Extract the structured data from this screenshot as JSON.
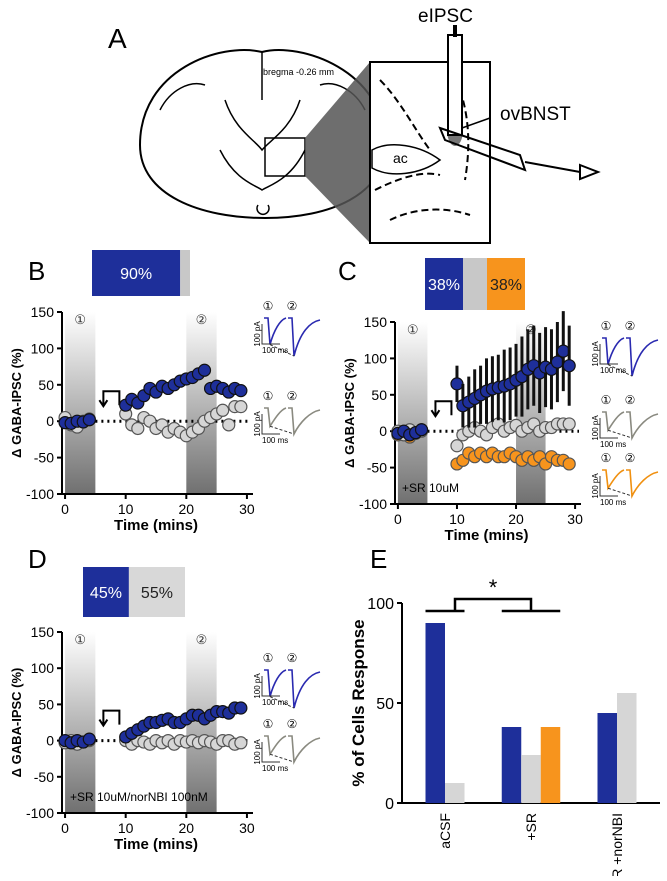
{
  "diagram": {
    "panel": "A",
    "labels": [
      "eIPSC",
      "bregma -0.26 mm",
      "ovBNST",
      "ac"
    ]
  },
  "chart_data": [
    {
      "type": "scatter",
      "panel": "B",
      "xlabel": "Time (mins)",
      "ylabel": "Δ GABA-IPSC (%)",
      "x": [
        0,
        1,
        2,
        3,
        4,
        10,
        11,
        12,
        13,
        14,
        15,
        16,
        17,
        18,
        19,
        20,
        21,
        22,
        23,
        24,
        25,
        26,
        27,
        28,
        29
      ],
      "series": [
        {
          "color": "#1e2f9a",
          "values": [
            -2,
            -3,
            0,
            -1,
            2,
            22,
            30,
            25,
            35,
            45,
            40,
            48,
            45,
            50,
            55,
            58,
            60,
            65,
            70,
            45,
            48,
            45,
            40,
            45,
            42
          ]
        },
        {
          "color": "#d6d6d6",
          "values": [
            5,
            -5,
            -8,
            0,
            3,
            10,
            -5,
            -10,
            5,
            0,
            -10,
            -5,
            -15,
            -10,
            -15,
            -20,
            -15,
            -10,
            0,
            5,
            10,
            15,
            -5,
            20,
            20
          ]
        }
      ],
      "xlim": [
        -1,
        31
      ],
      "ylim": [
        -100,
        150
      ],
      "xticks": [
        0,
        10,
        20,
        30
      ],
      "yticks": [
        -100,
        -50,
        0,
        50,
        100,
        150
      ],
      "reference_line": 0,
      "shaded": [
        [
          0,
          5
        ],
        [
          20,
          25
        ]
      ],
      "window_labels": [
        "①",
        "②"
      ],
      "summary": {
        "values": [
          90,
          10
        ],
        "value_labels": [
          "90%",
          null
        ],
        "colors": [
          "#1e2f9a",
          "#c8c8c8"
        ]
      },
      "insets": {
        "colors": [
          "#2a2ab0",
          "#8a8a80"
        ],
        "scale_y": "100 pA",
        "scale_x": "100 ms"
      }
    },
    {
      "type": "scatter",
      "panel": "C",
      "xlabel": "Time (mins)",
      "ylabel": "Δ GABA-IPSC (%)",
      "annotation": "+SR 10uM",
      "x": [
        0,
        1,
        2,
        3,
        4,
        10,
        11,
        12,
        13,
        14,
        15,
        16,
        17,
        18,
        19,
        20,
        21,
        22,
        23,
        24,
        25,
        26,
        27,
        28,
        29
      ],
      "series": [
        {
          "color": "#1e2f9a",
          "values": [
            -3,
            0,
            -5,
            -2,
            2,
            65,
            35,
            40,
            45,
            50,
            55,
            58,
            60,
            62,
            65,
            70,
            75,
            85,
            90,
            80,
            88,
            85,
            95,
            110,
            90
          ],
          "errors": [
            8,
            8,
            8,
            8,
            8,
            25,
            30,
            35,
            40,
            40,
            45,
            45,
            45,
            50,
            50,
            50,
            55,
            55,
            55,
            55,
            55,
            55,
            55,
            55,
            55
          ]
        },
        {
          "color": "#d6d6d6",
          "values": [
            0,
            -5,
            2,
            -3,
            0,
            -20,
            -5,
            0,
            5,
            0,
            -5,
            5,
            10,
            0,
            5,
            8,
            0,
            5,
            10,
            0,
            5,
            5,
            10,
            10,
            10
          ]
        },
        {
          "color": "#f7941d",
          "values": [
            -5,
            0,
            -8,
            -3,
            2,
            -45,
            -40,
            -30,
            -35,
            -30,
            -35,
            -30,
            -35,
            -35,
            -30,
            -35,
            -40,
            -35,
            -40,
            -35,
            -45,
            -35,
            -40,
            -40,
            -45
          ]
        }
      ],
      "xlim": [
        -1,
        31
      ],
      "ylim": [
        -100,
        150
      ],
      "xticks": [
        0,
        10,
        20,
        30
      ],
      "yticks": [
        -100,
        -50,
        0,
        50,
        100,
        150
      ],
      "reference_line": 0,
      "shaded": [
        [
          0,
          5
        ],
        [
          20,
          25
        ]
      ],
      "window_labels": [
        "①",
        "②"
      ],
      "summary": {
        "values": [
          38,
          24,
          38
        ],
        "value_labels": [
          "38%",
          null,
          "38%"
        ],
        "colors": [
          "#1e2f9a",
          "#c8c8c8",
          "#f7941d"
        ]
      },
      "insets": {
        "colors": [
          "#2a2ab0",
          "#8a8a80",
          "#f09010"
        ],
        "scale_y": "100 pA",
        "scale_x": "100 ms"
      }
    },
    {
      "type": "scatter",
      "panel": "D",
      "xlabel": "Time (mins)",
      "ylabel": "Δ GABA-IPSC (%)",
      "annotation": "+SR 10uM/norNBI 100nM",
      "x": [
        0,
        1,
        2,
        3,
        4,
        10,
        11,
        12,
        13,
        14,
        15,
        16,
        17,
        18,
        19,
        20,
        21,
        22,
        23,
        24,
        25,
        26,
        27,
        28,
        29
      ],
      "series": [
        {
          "color": "#1e2f9a",
          "values": [
            0,
            -3,
            0,
            -2,
            2,
            5,
            10,
            15,
            20,
            25,
            25,
            28,
            30,
            25,
            25,
            30,
            35,
            35,
            30,
            35,
            40,
            40,
            38,
            45,
            45
          ]
        },
        {
          "color": "#d6d6d6",
          "values": [
            -3,
            0,
            -5,
            -2,
            0,
            0,
            -5,
            0,
            -2,
            -5,
            0,
            -3,
            0,
            -5,
            0,
            -2,
            0,
            -3,
            0,
            -2,
            -5,
            0,
            0,
            -5,
            -3
          ]
        }
      ],
      "xlim": [
        -1,
        31
      ],
      "ylim": [
        -100,
        150
      ],
      "xticks": [
        0,
        10,
        20,
        30
      ],
      "yticks": [
        -100,
        -50,
        0,
        50,
        100,
        150
      ],
      "reference_line": 0,
      "shaded": [
        [
          0,
          5
        ],
        [
          20,
          25
        ]
      ],
      "window_labels": [
        "①",
        "②"
      ],
      "summary": {
        "values": [
          45,
          55
        ],
        "value_labels": [
          "45%",
          "55%"
        ],
        "colors": [
          "#1e2f9a",
          "#d8d8d8"
        ]
      },
      "insets": {
        "colors": [
          "#2a2ab0",
          "#8a8a80"
        ],
        "scale_y": "100 pA",
        "scale_x": "100 ms"
      }
    },
    {
      "type": "bar",
      "panel": "E",
      "ylabel": "% of Cells Response",
      "annotation": "*",
      "categories": [
        "aCSF",
        "+SR",
        "+SR +norNBI"
      ],
      "series": [
        {
          "color": "#1e2f9a",
          "values": [
            90,
            38,
            45
          ]
        },
        {
          "color": "#d6d6d6",
          "values": [
            10,
            24,
            55
          ]
        },
        {
          "color": "#f7941d",
          "values": [
            null,
            38,
            null
          ]
        }
      ],
      "ylim": [
        0,
        100
      ],
      "yticks": [
        0,
        50,
        100
      ]
    }
  ]
}
